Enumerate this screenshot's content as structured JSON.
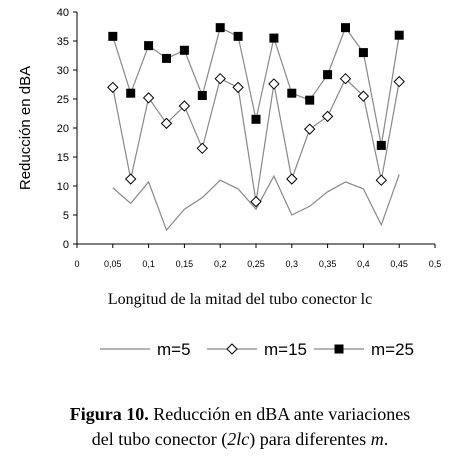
{
  "chart_data": {
    "type": "line",
    "y_label": "Reducción en dBA",
    "x_label": "Longitud de la mitad del tubo conector lc",
    "caption": [
      "Figura 10.",
      " Reducción en dBA ante variaciones",
      "del tubo conector (",
      "2lc",
      ") para diferentes ",
      "m",
      "."
    ],
    "x": [
      0.05,
      0.075,
      0.1,
      0.125,
      0.15,
      0.175,
      0.2,
      0.225,
      0.25,
      0.275,
      0.3,
      0.325,
      0.35,
      0.375,
      0.4,
      0.425,
      0.45
    ],
    "series": [
      {
        "name": "m=5",
        "color": "#888888",
        "marker": "none",
        "values": [
          9.7,
          7,
          10.7,
          2.4,
          6,
          8,
          11,
          9.5,
          6,
          11.7,
          5,
          6.5,
          9,
          10.7,
          9.5,
          3.3,
          12
        ]
      },
      {
        "name": "m=15",
        "color": "#888888",
        "marker": "diamond",
        "values": [
          27,
          11.2,
          25.2,
          20.8,
          23.8,
          16.5,
          28.5,
          27,
          7.3,
          27.6,
          11.2,
          19.8,
          22,
          28.5,
          25.5,
          11,
          28
        ]
      },
      {
        "name": "m=25",
        "color": "#888888",
        "marker": "square",
        "values": [
          35.8,
          26,
          34.2,
          32,
          33.4,
          25.6,
          37.3,
          35.8,
          21.5,
          35.5,
          26,
          24.8,
          29.2,
          37.3,
          33,
          17,
          36
        ]
      }
    ],
    "xlim": [
      0,
      0.5
    ],
    "xticks": [
      0,
      {
        "value": 0.05,
        "label": "0,05"
      },
      {
        "value": 0.1,
        "label": "0,1"
      },
      {
        "value": 0.15,
        "label": "0,15"
      },
      {
        "value": 0.2,
        "label": "0,2"
      },
      {
        "value": 0.25,
        "label": "0,25"
      },
      {
        "value": 0.3,
        "label": "0,3"
      },
      {
        "value": 0.35,
        "label": "0,35"
      },
      {
        "value": 0.4,
        "label": "0,4"
      },
      {
        "value": 0.45,
        "label": "0,45"
      },
      {
        "value": 0.5,
        "label": "0,5"
      }
    ],
    "ylim": [
      0,
      40
    ],
    "yticks": [
      0,
      5,
      10,
      15,
      20,
      25,
      30,
      35,
      40
    ],
    "grid": false
  }
}
